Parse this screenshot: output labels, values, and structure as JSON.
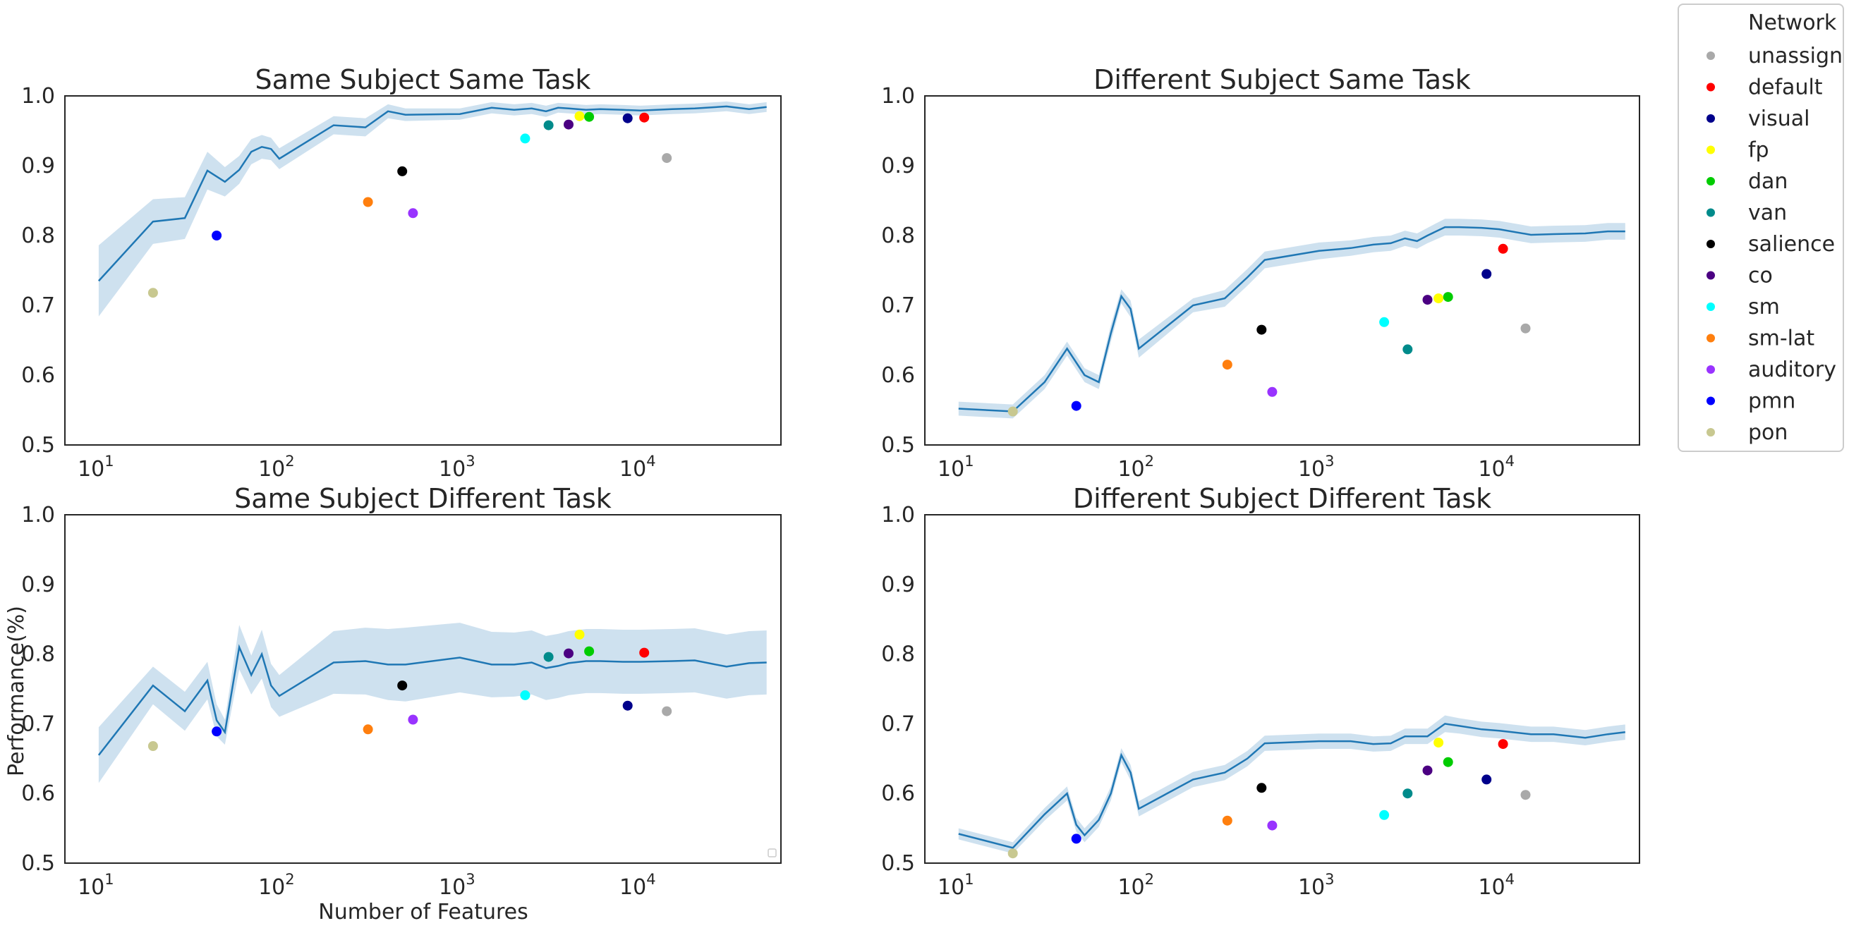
{
  "chart_data": {
    "type": "line",
    "x_scale": "log",
    "grid": false,
    "xlim": [
      6.5,
      60000
    ],
    "ylim": [
      0.5,
      1.0
    ],
    "y_ticks": [
      "0.5",
      "0.6",
      "0.7",
      "0.8",
      "0.9",
      "1.0"
    ],
    "x_ticks": [
      {
        "base": "10",
        "exp": "1",
        "value": 10
      },
      {
        "base": "10",
        "exp": "2",
        "value": 100
      },
      {
        "base": "10",
        "exp": "3",
        "value": 1000
      },
      {
        "base": "10",
        "exp": "4",
        "value": 10000
      }
    ],
    "xlabel": "Number of Features",
    "ylabel": "Performance(%)",
    "line_color": "#1f77b4",
    "band_color": "#1f77b4",
    "legend": {
      "title": "Network",
      "placement": "outside-right-top",
      "entries": [
        {
          "name": "unassign",
          "color": "#a9a9a9"
        },
        {
          "name": "default",
          "color": "#ff0000"
        },
        {
          "name": "visual",
          "color": "#00008b"
        },
        {
          "name": "fp",
          "color": "#ffff00"
        },
        {
          "name": "dan",
          "color": "#00cc00"
        },
        {
          "name": "van",
          "color": "#008b8b"
        },
        {
          "name": "salience",
          "color": "#000000"
        },
        {
          "name": "co",
          "color": "#4b0082"
        },
        {
          "name": "sm",
          "color": "#00ffff"
        },
        {
          "name": "sm-lat",
          "color": "#ff7f0e"
        },
        {
          "name": "auditory",
          "color": "#9933ff"
        },
        {
          "name": "pmn",
          "color": "#0000ff"
        },
        {
          "name": "pon",
          "color": "#c8c890"
        }
      ]
    },
    "network_features": [
      14000,
      10500,
      8500,
      4600,
      5200,
      3100,
      480,
      4000,
      2300,
      310,
      550,
      45,
      20
    ],
    "panels": [
      {
        "title": "Same Subject Same Task",
        "show_xlabel": false,
        "show_ylabel": false,
        "show_empty_legend": false,
        "line": {
          "x": [
            10,
            20,
            30,
            40,
            50,
            60,
            70,
            80,
            90,
            100,
            200,
            300,
            400,
            500,
            1000,
            1500,
            2000,
            2500,
            3000,
            3500,
            4000,
            5000,
            6000,
            8000,
            10000,
            15000,
            20000,
            30000,
            40000,
            50000
          ],
          "y": [
            0.735,
            0.82,
            0.825,
            0.893,
            0.877,
            0.894,
            0.92,
            0.927,
            0.924,
            0.91,
            0.958,
            0.955,
            0.978,
            0.973,
            0.974,
            0.983,
            0.98,
            0.982,
            0.978,
            0.983,
            0.982,
            0.98,
            0.981,
            0.98,
            0.979,
            0.981,
            0.982,
            0.985,
            0.981,
            0.984
          ],
          "lower": [
            0.684,
            0.788,
            0.795,
            0.866,
            0.856,
            0.874,
            0.902,
            0.91,
            0.908,
            0.895,
            0.945,
            0.942,
            0.968,
            0.964,
            0.966,
            0.975,
            0.972,
            0.974,
            0.97,
            0.976,
            0.975,
            0.973,
            0.974,
            0.973,
            0.972,
            0.974,
            0.975,
            0.978,
            0.974,
            0.977
          ],
          "upper": [
            0.786,
            0.852,
            0.855,
            0.92,
            0.898,
            0.914,
            0.938,
            0.944,
            0.94,
            0.925,
            0.971,
            0.968,
            0.988,
            0.982,
            0.982,
            0.991,
            0.988,
            0.99,
            0.986,
            0.99,
            0.989,
            0.987,
            0.988,
            0.987,
            0.986,
            0.988,
            0.989,
            0.992,
            0.988,
            0.991
          ]
        },
        "points": [
          0.911,
          0.969,
          0.968,
          0.971,
          0.97,
          0.958,
          0.892,
          0.959,
          0.939,
          0.848,
          0.832,
          0.8,
          0.718
        ]
      },
      {
        "title": "Different Subject Same Task",
        "show_xlabel": false,
        "show_ylabel": false,
        "show_empty_legend": false,
        "line": {
          "x": [
            10,
            20,
            30,
            40,
            50,
            60,
            70,
            80,
            90,
            100,
            200,
            300,
            400,
            500,
            1000,
            1500,
            2000,
            2500,
            3000,
            3500,
            4000,
            5000,
            6000,
            8000,
            10000,
            15000,
            20000,
            30000,
            40000,
            50000
          ],
          "y": [
            0.552,
            0.548,
            0.59,
            0.638,
            0.6,
            0.59,
            0.66,
            0.713,
            0.695,
            0.638,
            0.7,
            0.71,
            0.74,
            0.765,
            0.778,
            0.782,
            0.787,
            0.789,
            0.796,
            0.792,
            0.8,
            0.812,
            0.812,
            0.811,
            0.809,
            0.801,
            0.802,
            0.803,
            0.806,
            0.806
          ],
          "lower": [
            0.542,
            0.538,
            0.58,
            0.628,
            0.59,
            0.58,
            0.648,
            0.703,
            0.683,
            0.625,
            0.69,
            0.698,
            0.728,
            0.753,
            0.766,
            0.771,
            0.776,
            0.778,
            0.785,
            0.781,
            0.789,
            0.8,
            0.8,
            0.799,
            0.797,
            0.789,
            0.79,
            0.791,
            0.794,
            0.794
          ],
          "upper": [
            0.562,
            0.558,
            0.6,
            0.648,
            0.61,
            0.6,
            0.672,
            0.723,
            0.707,
            0.651,
            0.71,
            0.722,
            0.752,
            0.777,
            0.79,
            0.793,
            0.798,
            0.8,
            0.807,
            0.803,
            0.811,
            0.824,
            0.824,
            0.823,
            0.821,
            0.813,
            0.814,
            0.815,
            0.818,
            0.818
          ]
        },
        "points": [
          0.667,
          0.781,
          0.745,
          0.71,
          0.712,
          0.637,
          0.665,
          0.708,
          0.676,
          0.615,
          0.576,
          0.556,
          0.548
        ]
      },
      {
        "title": "Same Subject Different Task",
        "show_xlabel": true,
        "show_ylabel": true,
        "show_empty_legend": true,
        "line": {
          "x": [
            10,
            20,
            30,
            40,
            45,
            50,
            60,
            70,
            80,
            90,
            100,
            200,
            300,
            400,
            500,
            1000,
            1500,
            2000,
            2500,
            3000,
            3500,
            4000,
            5000,
            6000,
            8000,
            10000,
            15000,
            20000,
            30000,
            40000,
            50000
          ],
          "y": [
            0.655,
            0.755,
            0.718,
            0.762,
            0.705,
            0.688,
            0.81,
            0.77,
            0.8,
            0.755,
            0.74,
            0.788,
            0.79,
            0.785,
            0.785,
            0.795,
            0.785,
            0.785,
            0.788,
            0.78,
            0.783,
            0.787,
            0.79,
            0.79,
            0.789,
            0.789,
            0.79,
            0.791,
            0.782,
            0.787,
            0.788
          ],
          "lower": [
            0.615,
            0.728,
            0.69,
            0.735,
            0.682,
            0.67,
            0.778,
            0.742,
            0.765,
            0.724,
            0.71,
            0.743,
            0.742,
            0.734,
            0.732,
            0.745,
            0.738,
            0.739,
            0.742,
            0.734,
            0.737,
            0.741,
            0.744,
            0.744,
            0.743,
            0.743,
            0.744,
            0.745,
            0.736,
            0.741,
            0.742
          ],
          "upper": [
            0.695,
            0.782,
            0.746,
            0.789,
            0.728,
            0.706,
            0.842,
            0.798,
            0.835,
            0.786,
            0.77,
            0.833,
            0.838,
            0.836,
            0.838,
            0.845,
            0.832,
            0.831,
            0.834,
            0.826,
            0.829,
            0.833,
            0.836,
            0.836,
            0.835,
            0.835,
            0.836,
            0.837,
            0.828,
            0.833,
            0.834
          ]
        },
        "points": [
          0.718,
          0.802,
          0.726,
          0.828,
          0.804,
          0.796,
          0.755,
          0.801,
          0.741,
          0.692,
          0.706,
          0.689,
          0.668
        ]
      },
      {
        "title": "Different Subject Different Task",
        "show_xlabel": false,
        "show_ylabel": false,
        "show_empty_legend": false,
        "line": {
          "x": [
            10,
            20,
            30,
            40,
            45,
            50,
            60,
            70,
            80,
            90,
            100,
            200,
            300,
            400,
            500,
            1000,
            1500,
            2000,
            2500,
            3000,
            3500,
            4000,
            5000,
            6000,
            8000,
            10000,
            15000,
            20000,
            30000,
            40000,
            50000
          ],
          "y": [
            0.542,
            0.522,
            0.57,
            0.6,
            0.555,
            0.54,
            0.562,
            0.6,
            0.655,
            0.63,
            0.578,
            0.62,
            0.63,
            0.65,
            0.672,
            0.675,
            0.675,
            0.671,
            0.672,
            0.682,
            0.682,
            0.682,
            0.7,
            0.697,
            0.692,
            0.69,
            0.685,
            0.685,
            0.68,
            0.685,
            0.688
          ],
          "lower": [
            0.534,
            0.514,
            0.561,
            0.59,
            0.545,
            0.53,
            0.552,
            0.59,
            0.645,
            0.619,
            0.567,
            0.609,
            0.619,
            0.639,
            0.661,
            0.664,
            0.664,
            0.66,
            0.661,
            0.671,
            0.671,
            0.671,
            0.688,
            0.686,
            0.681,
            0.679,
            0.674,
            0.674,
            0.669,
            0.674,
            0.677
          ],
          "upper": [
            0.55,
            0.53,
            0.579,
            0.61,
            0.565,
            0.55,
            0.572,
            0.61,
            0.665,
            0.641,
            0.589,
            0.631,
            0.641,
            0.661,
            0.683,
            0.686,
            0.686,
            0.682,
            0.683,
            0.693,
            0.693,
            0.693,
            0.712,
            0.708,
            0.703,
            0.701,
            0.696,
            0.696,
            0.691,
            0.696,
            0.699
          ]
        },
        "points": [
          0.598,
          0.671,
          0.62,
          0.673,
          0.645,
          0.6,
          0.608,
          0.633,
          0.569,
          0.561,
          0.554,
          0.535,
          0.514
        ]
      }
    ]
  }
}
